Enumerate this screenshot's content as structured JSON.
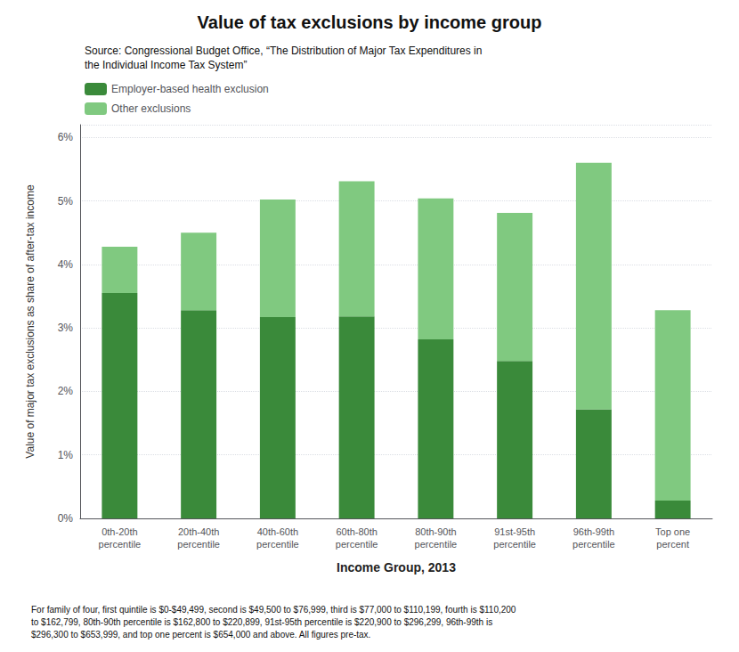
{
  "chart_data": {
    "type": "bar",
    "stacked": true,
    "title": "Value of tax exclusions by income group",
    "subtitle": "Source: Congressional Budget Office, “The Distribution of Major Tax Expenditures in\nthe Individual Income Tax System”",
    "ylabel": "Value of major tax exclusions as share of after-tax income",
    "xlabel": "Income Group, 2013",
    "annotations": [
      "For family of four, first quintile is $0-$49,499, second is $49,500 to $76,999, third is $77,000 to $110,199, fourth is $110,200\nto $162,799, 80th-90th percentile is $162,800 to $220,899, 91st-95th percentile is $220,900 to $296,299, 96th-99th is\n$296,300 to $653,999, and top one percent is $654,000 and above. All figures pre-tax."
    ],
    "categories": [
      "0th-20th\npercentile",
      "20th-40th\npercentile",
      "40th-60th\npercentile",
      "60th-80th\npercentile",
      "80th-90th\npercentile",
      "91st-95th\npercentile",
      "96th-99th\npercentile",
      "Top one\npercent"
    ],
    "series": [
      {
        "name": "Employer-based health exclusion",
        "color": "#3a8a3a",
        "values": [
          0.0355,
          0.0328,
          0.0317,
          0.0318,
          0.0282,
          0.0248,
          0.0172,
          0.0028
        ]
      },
      {
        "name": "Other exclusions",
        "color": "#80c980",
        "values": [
          0.0073,
          0.0122,
          0.0185,
          0.0213,
          0.0222,
          0.0233,
          0.0388,
          0.03
        ]
      }
    ],
    "ylim": [
      0,
      0.062
    ],
    "yticks": [
      {
        "value": 0,
        "label": "0%"
      },
      {
        "value": 0.01,
        "label": "1%"
      },
      {
        "value": 0.02,
        "label": "2%"
      },
      {
        "value": 0.03,
        "label": "3%"
      },
      {
        "value": 0.04,
        "label": "4%"
      },
      {
        "value": 0.05,
        "label": "5%"
      },
      {
        "value": 0.06,
        "label": "6%"
      }
    ],
    "grid": true,
    "legend": "upper left"
  }
}
